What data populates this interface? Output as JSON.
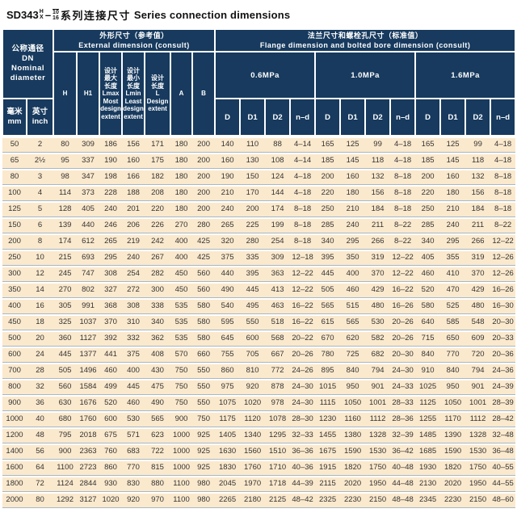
{
  "title": {
    "model": "SD343",
    "series_sup": "H",
    "series_sub": "X",
    "dash": "–",
    "pressure_top": "10",
    "pressure_bottom": "16",
    "name_cn": "系列连接尺寸",
    "name_en": "Series connection dimensions"
  },
  "colors": {
    "header_bg": "#173a5e",
    "header_text": "#ffffff",
    "row_bg": "#fbe9cd",
    "row_separator": "#a6b8c6",
    "body_text": "#333333"
  },
  "table": {
    "dn_header": "公称通径\nDN\nNominal\ndiameter",
    "mm_header": "毫米\nmm",
    "inch_header": "英寸\ninch",
    "external_header": "外形尺寸（参考值）\nExternal dimension (consult)",
    "flange_header": "法兰尺寸和螺栓孔尺寸（标准值）\nFlange dimension and bolted bore dimension (consult)",
    "ext_cols": [
      "H",
      "H1",
      "设计\n最大\n长度\nLmax\nMost\ndesign\nextent",
      "设计\n最小\n长度\nLmin\nLeast\ndesign\nextent",
      "设计\n长度\nL\nDesign\nextent",
      "A",
      "B"
    ],
    "pressure_groups": [
      "0.6MPa",
      "1.0MPa",
      "1.6MPa"
    ],
    "bolt_cols": [
      "D",
      "D1",
      "D2",
      "n–d"
    ],
    "rows": [
      [
        "50",
        "2",
        "80",
        "309",
        "186",
        "156",
        "171",
        "180",
        "200",
        "140",
        "110",
        "88",
        "4–14",
        "165",
        "125",
        "99",
        "4–18",
        "165",
        "125",
        "99",
        "4–18"
      ],
      [
        "65",
        "2½",
        "95",
        "337",
        "190",
        "160",
        "175",
        "180",
        "200",
        "160",
        "130",
        "108",
        "4–14",
        "185",
        "145",
        "118",
        "4–18",
        "185",
        "145",
        "118",
        "4–18"
      ],
      [
        "80",
        "3",
        "98",
        "347",
        "198",
        "166",
        "182",
        "180",
        "200",
        "190",
        "150",
        "124",
        "4–18",
        "200",
        "160",
        "132",
        "8–18",
        "200",
        "160",
        "132",
        "8–18"
      ],
      [
        "100",
        "4",
        "114",
        "373",
        "228",
        "188",
        "208",
        "180",
        "200",
        "210",
        "170",
        "144",
        "4–18",
        "220",
        "180",
        "156",
        "8–18",
        "220",
        "180",
        "156",
        "8–18"
      ],
      [
        "125",
        "5",
        "128",
        "405",
        "240",
        "201",
        "220",
        "180",
        "200",
        "240",
        "200",
        "174",
        "8–18",
        "250",
        "210",
        "184",
        "8–18",
        "250",
        "210",
        "184",
        "8–18"
      ],
      [
        "150",
        "6",
        "139",
        "440",
        "246",
        "206",
        "226",
        "270",
        "280",
        "265",
        "225",
        "199",
        "8–18",
        "285",
        "240",
        "211",
        "8–22",
        "285",
        "240",
        "211",
        "8–22"
      ],
      [
        "200",
        "8",
        "174",
        "612",
        "265",
        "219",
        "242",
        "400",
        "425",
        "320",
        "280",
        "254",
        "8–18",
        "340",
        "295",
        "266",
        "8–22",
        "340",
        "295",
        "266",
        "12–22"
      ],
      [
        "250",
        "10",
        "215",
        "693",
        "295",
        "240",
        "267",
        "400",
        "425",
        "375",
        "335",
        "309",
        "12–18",
        "395",
        "350",
        "319",
        "12–22",
        "405",
        "355",
        "319",
        "12–26"
      ],
      [
        "300",
        "12",
        "245",
        "747",
        "308",
        "254",
        "282",
        "450",
        "560",
        "440",
        "395",
        "363",
        "12–22",
        "445",
        "400",
        "370",
        "12–22",
        "460",
        "410",
        "370",
        "12–26"
      ],
      [
        "350",
        "14",
        "270",
        "802",
        "327",
        "272",
        "300",
        "450",
        "560",
        "490",
        "445",
        "413",
        "12–22",
        "505",
        "460",
        "429",
        "16–22",
        "520",
        "470",
        "429",
        "16–26"
      ],
      [
        "400",
        "16",
        "305",
        "991",
        "368",
        "308",
        "338",
        "535",
        "580",
        "540",
        "495",
        "463",
        "16–22",
        "565",
        "515",
        "480",
        "16–26",
        "580",
        "525",
        "480",
        "16–30"
      ],
      [
        "450",
        "18",
        "325",
        "1037",
        "370",
        "310",
        "340",
        "535",
        "580",
        "595",
        "550",
        "518",
        "16–22",
        "615",
        "565",
        "530",
        "20–26",
        "640",
        "585",
        "548",
        "20–30"
      ],
      [
        "500",
        "20",
        "360",
        "1127",
        "392",
        "332",
        "362",
        "535",
        "580",
        "645",
        "600",
        "568",
        "20–22",
        "670",
        "620",
        "582",
        "20–26",
        "715",
        "650",
        "609",
        "20–33"
      ],
      [
        "600",
        "24",
        "445",
        "1377",
        "441",
        "375",
        "408",
        "570",
        "660",
        "755",
        "705",
        "667",
        "20–26",
        "780",
        "725",
        "682",
        "20–30",
        "840",
        "770",
        "720",
        "20–36"
      ],
      [
        "700",
        "28",
        "505",
        "1496",
        "460",
        "400",
        "430",
        "750",
        "550",
        "860",
        "810",
        "772",
        "24–26",
        "895",
        "840",
        "794",
        "24–30",
        "910",
        "840",
        "794",
        "24–36"
      ],
      [
        "800",
        "32",
        "560",
        "1584",
        "499",
        "445",
        "475",
        "750",
        "550",
        "975",
        "920",
        "878",
        "24–30",
        "1015",
        "950",
        "901",
        "24–33",
        "1025",
        "950",
        "901",
        "24–39"
      ],
      [
        "900",
        "36",
        "630",
        "1676",
        "520",
        "460",
        "490",
        "750",
        "550",
        "1075",
        "1020",
        "978",
        "24–30",
        "1115",
        "1050",
        "1001",
        "28–33",
        "1125",
        "1050",
        "1001",
        "28–39"
      ],
      [
        "1000",
        "40",
        "680",
        "1760",
        "600",
        "530",
        "565",
        "900",
        "750",
        "1175",
        "1120",
        "1078",
        "28–30",
        "1230",
        "1160",
        "1112",
        "28–36",
        "1255",
        "1170",
        "1112",
        "28–42"
      ],
      [
        "1200",
        "48",
        "795",
        "2018",
        "675",
        "571",
        "623",
        "1000",
        "925",
        "1405",
        "1340",
        "1295",
        "32–33",
        "1455",
        "1380",
        "1328",
        "32–39",
        "1485",
        "1390",
        "1328",
        "32–48"
      ],
      [
        "1400",
        "56",
        "900",
        "2363",
        "760",
        "683",
        "722",
        "1000",
        "925",
        "1630",
        "1560",
        "1510",
        "36–36",
        "1675",
        "1590",
        "1530",
        "36–42",
        "1685",
        "1590",
        "1530",
        "36–48"
      ],
      [
        "1600",
        "64",
        "1100",
        "2723",
        "860",
        "770",
        "815",
        "1000",
        "925",
        "1830",
        "1760",
        "1710",
        "40–36",
        "1915",
        "1820",
        "1750",
        "40–48",
        "1930",
        "1820",
        "1750",
        "40–55"
      ],
      [
        "1800",
        "72",
        "1124",
        "2844",
        "930",
        "830",
        "880",
        "1100",
        "980",
        "2045",
        "1970",
        "1718",
        "44–39",
        "2115",
        "2020",
        "1950",
        "44–48",
        "2130",
        "2020",
        "1950",
        "44–55"
      ],
      [
        "2000",
        "80",
        "1292",
        "3127",
        "1020",
        "920",
        "970",
        "1100",
        "980",
        "2265",
        "2180",
        "2125",
        "48–42",
        "2325",
        "2230",
        "2150",
        "48–48",
        "2345",
        "2230",
        "2150",
        "48–60"
      ]
    ]
  }
}
